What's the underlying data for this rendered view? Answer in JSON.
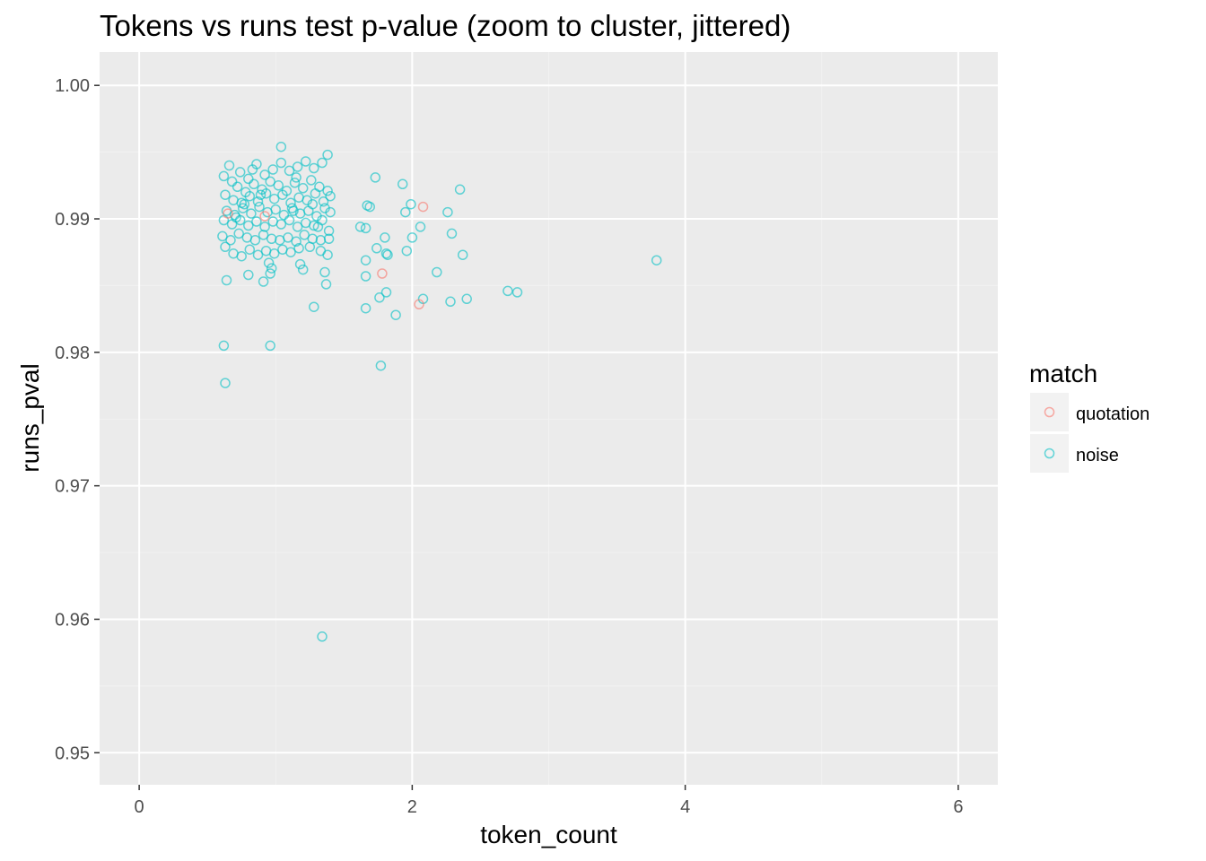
{
  "chart_data": {
    "type": "scatter",
    "title": "Tokens vs runs test p-value (zoom to cluster, jittered)",
    "xlabel": "token_count",
    "ylabel": "runs_pval",
    "xlim": [
      -0.29,
      6.29
    ],
    "ylim": [
      0.9476,
      1.0025
    ],
    "x_ticks": [
      0,
      2,
      4,
      6
    ],
    "x_tick_labels": [
      "0",
      "2",
      "4",
      "6"
    ],
    "y_ticks": [
      0.95,
      0.96,
      0.97,
      0.98,
      0.99,
      1.0
    ],
    "y_tick_labels": [
      "0.95",
      "0.96",
      "0.97",
      "0.98",
      "0.99",
      "1.00"
    ],
    "grid": true,
    "legend": {
      "title": "match",
      "placement": "right"
    },
    "series": [
      {
        "name": "quotation",
        "color": "#F8766D",
        "points": [
          [
            0.65,
            0.9904
          ],
          [
            0.92,
            0.9902
          ],
          [
            1.78,
            0.9859
          ],
          [
            2.08,
            0.9909
          ],
          [
            2.05,
            0.9836
          ]
        ]
      },
      {
        "name": "noise",
        "color": "#00BFC4",
        "points": [
          [
            0.62,
            0.9932
          ],
          [
            0.68,
            0.9928
          ],
          [
            0.74,
            0.9935
          ],
          [
            0.8,
            0.993
          ],
          [
            0.86,
            0.9941
          ],
          [
            0.92,
            0.9933
          ],
          [
            0.98,
            0.9937
          ],
          [
            1.04,
            0.9942
          ],
          [
            1.1,
            0.9936
          ],
          [
            1.16,
            0.9939
          ],
          [
            1.22,
            0.9943
          ],
          [
            1.28,
            0.9938
          ],
          [
            1.34,
            0.9942
          ],
          [
            1.38,
            0.9948
          ],
          [
            0.66,
            0.994
          ],
          [
            0.72,
            0.9924
          ],
          [
            0.78,
            0.992
          ],
          [
            0.84,
            0.9926
          ],
          [
            0.9,
            0.9922
          ],
          [
            0.96,
            0.9928
          ],
          [
            1.02,
            0.9925
          ],
          [
            1.08,
            0.9921
          ],
          [
            1.14,
            0.9927
          ],
          [
            1.2,
            0.9923
          ],
          [
            1.26,
            0.9929
          ],
          [
            1.32,
            0.9924
          ],
          [
            1.38,
            0.9921
          ],
          [
            0.63,
            0.9918
          ],
          [
            0.69,
            0.9914
          ],
          [
            0.75,
            0.9912
          ],
          [
            0.81,
            0.9917
          ],
          [
            0.87,
            0.9913
          ],
          [
            0.93,
            0.9919
          ],
          [
            0.99,
            0.9915
          ],
          [
            1.05,
            0.9918
          ],
          [
            1.11,
            0.9912
          ],
          [
            1.17,
            0.9916
          ],
          [
            1.23,
            0.9914
          ],
          [
            1.29,
            0.9919
          ],
          [
            1.35,
            0.9913
          ],
          [
            1.4,
            0.9917
          ],
          [
            0.64,
            0.9906
          ],
          [
            0.7,
            0.9903
          ],
          [
            0.76,
            0.9908
          ],
          [
            0.82,
            0.9904
          ],
          [
            0.88,
            0.9909
          ],
          [
            0.94,
            0.9905
          ],
          [
            1.0,
            0.9907
          ],
          [
            1.06,
            0.9903
          ],
          [
            1.12,
            0.9908
          ],
          [
            1.18,
            0.9904
          ],
          [
            1.24,
            0.9906
          ],
          [
            1.3,
            0.9902
          ],
          [
            1.36,
            0.9908
          ],
          [
            1.4,
            0.9905
          ],
          [
            0.62,
            0.9899
          ],
          [
            0.68,
            0.9896
          ],
          [
            0.74,
            0.9899
          ],
          [
            0.8,
            0.9895
          ],
          [
            0.86,
            0.9898
          ],
          [
            0.92,
            0.9894
          ],
          [
            0.98,
            0.9898
          ],
          [
            1.04,
            0.9896
          ],
          [
            1.1,
            0.9899
          ],
          [
            1.16,
            0.9894
          ],
          [
            1.22,
            0.9897
          ],
          [
            1.28,
            0.9895
          ],
          [
            1.34,
            0.9899
          ],
          [
            1.39,
            0.9891
          ],
          [
            0.61,
            0.9887
          ],
          [
            0.67,
            0.9884
          ],
          [
            0.73,
            0.9889
          ],
          [
            0.79,
            0.9886
          ],
          [
            0.85,
            0.9884
          ],
          [
            0.91,
            0.9888
          ],
          [
            0.97,
            0.9885
          ],
          [
            1.03,
            0.9884
          ],
          [
            1.09,
            0.9886
          ],
          [
            1.15,
            0.9883
          ],
          [
            1.21,
            0.9888
          ],
          [
            1.27,
            0.9885
          ],
          [
            1.33,
            0.9884
          ],
          [
            1.39,
            0.9885
          ],
          [
            0.63,
            0.9879
          ],
          [
            0.69,
            0.9874
          ],
          [
            0.75,
            0.9872
          ],
          [
            0.81,
            0.9877
          ],
          [
            0.87,
            0.9873
          ],
          [
            0.93,
            0.9876
          ],
          [
            0.99,
            0.9874
          ],
          [
            1.05,
            0.9877
          ],
          [
            1.11,
            0.9875
          ],
          [
            1.17,
            0.9878
          ],
          [
            1.25,
            0.9879
          ],
          [
            1.33,
            0.9876
          ],
          [
            1.38,
            0.9873
          ],
          [
            0.95,
            0.9867
          ],
          [
            0.97,
            0.9863
          ],
          [
            1.18,
            0.9866
          ],
          [
            1.2,
            0.9862
          ],
          [
            0.8,
            0.9858
          ],
          [
            0.96,
            0.9859
          ],
          [
            0.91,
            0.9853
          ],
          [
            0.64,
            0.9854
          ],
          [
            1.36,
            0.986
          ],
          [
            1.37,
            0.9851
          ],
          [
            1.28,
            0.9834
          ],
          [
            0.62,
            0.9805
          ],
          [
            0.96,
            0.9805
          ],
          [
            0.63,
            0.9777
          ],
          [
            1.34,
            0.9587
          ],
          [
            1.04,
            0.9954
          ],
          [
            0.83,
            0.9937
          ],
          [
            1.15,
            0.9931
          ],
          [
            0.71,
            0.9901
          ],
          [
            1.27,
            0.9911
          ],
          [
            0.89,
            0.9918
          ],
          [
            1.13,
            0.9906
          ],
          [
            1.31,
            0.9894
          ],
          [
            0.77,
            0.9911
          ],
          [
            1.73,
            0.9931
          ],
          [
            1.93,
            0.9926
          ],
          [
            1.99,
            0.9911
          ],
          [
            2.35,
            0.9922
          ],
          [
            1.67,
            0.991
          ],
          [
            1.69,
            0.9909
          ],
          [
            1.95,
            0.9905
          ],
          [
            2.26,
            0.9905
          ],
          [
            1.62,
            0.9894
          ],
          [
            1.66,
            0.9893
          ],
          [
            2.06,
            0.9894
          ],
          [
            2.29,
            0.9889
          ],
          [
            1.8,
            0.9886
          ],
          [
            2.0,
            0.9886
          ],
          [
            1.74,
            0.9878
          ],
          [
            1.96,
            0.9876
          ],
          [
            1.81,
            0.9874
          ],
          [
            1.82,
            0.9873
          ],
          [
            2.37,
            0.9873
          ],
          [
            1.66,
            0.9869
          ],
          [
            3.79,
            0.9869
          ],
          [
            2.18,
            0.986
          ],
          [
            1.66,
            0.9857
          ],
          [
            1.81,
            0.9845
          ],
          [
            2.7,
            0.9846
          ],
          [
            2.77,
            0.9845
          ],
          [
            1.76,
            0.9841
          ],
          [
            2.08,
            0.984
          ],
          [
            2.4,
            0.984
          ],
          [
            2.28,
            0.9838
          ],
          [
            1.66,
            0.9833
          ],
          [
            1.88,
            0.9828
          ],
          [
            1.77,
            0.979
          ]
        ]
      }
    ]
  }
}
